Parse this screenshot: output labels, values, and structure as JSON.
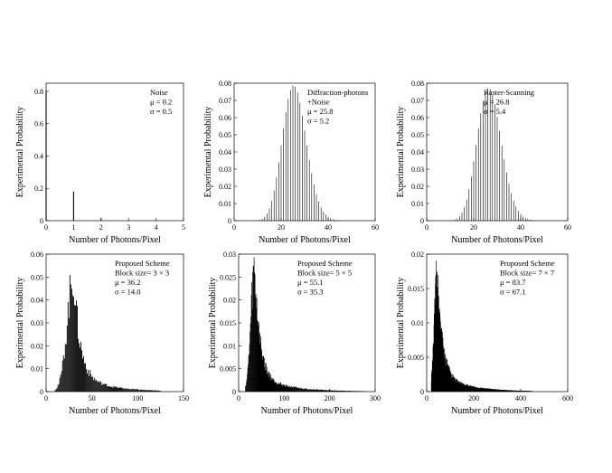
{
  "chart_data": [
    {
      "type": "bar",
      "title": "",
      "xlabel": "Number of Photons/Pixel",
      "ylabel": "Experimental Probability",
      "xlim": [
        0,
        5
      ],
      "ylim": [
        0,
        0.85
      ],
      "xticks": [
        0,
        1,
        2,
        3,
        4,
        5
      ],
      "yticks": [
        0,
        0.2,
        0.4,
        0.6,
        0.8
      ],
      "ytick_labels": [
        "0",
        "0.2",
        "0.4",
        "0.6",
        "0.8"
      ],
      "annotation": [
        "Noise",
        "μ = 0.2",
        "σ = 0.5"
      ],
      "dist": {
        "kind": "discrete",
        "x": [
          0,
          1,
          2,
          3,
          4
        ],
        "y": [
          0.8,
          0.18,
          0.015,
          0.003,
          0.001
        ]
      }
    },
    {
      "type": "bar",
      "title": "",
      "xlabel": "Number of Photons/Pixel",
      "ylabel": "Experimental Probability",
      "xlim": [
        0,
        60
      ],
      "ylim": [
        0,
        0.08
      ],
      "xticks": [
        0,
        20,
        40,
        60
      ],
      "yticks": [
        0,
        0.01,
        0.02,
        0.03,
        0.04,
        0.05,
        0.06,
        0.07,
        0.08
      ],
      "ytick_labels": [
        "0",
        "0.01",
        "0.02",
        "0.03",
        "0.04",
        "0.05",
        "0.06",
        "0.07",
        "0.08"
      ],
      "annotation": [
        "Diffraction-photons",
        "+Noise",
        "μ = 25.8",
        "σ = 5.2"
      ],
      "dist": {
        "kind": "poisson",
        "mean": 25.8,
        "max_x": 50
      }
    },
    {
      "type": "bar",
      "title": "",
      "xlabel": "Number of Photons/Pixel",
      "ylabel": "Experimental Probability",
      "xlim": [
        0,
        60
      ],
      "ylim": [
        0,
        0.08
      ],
      "xticks": [
        0,
        20,
        40,
        60
      ],
      "yticks": [
        0,
        0.01,
        0.02,
        0.03,
        0.04,
        0.05,
        0.06,
        0.07,
        0.08
      ],
      "ytick_labels": [
        "0",
        "0.01",
        "0.02",
        "0.03",
        "0.04",
        "0.05",
        "0.06",
        "0.07",
        "0.08"
      ],
      "annotation": [
        "Raster-Scanning",
        "μ = 26.8",
        "σ = 5.4"
      ],
      "dist": {
        "kind": "poisson",
        "mean": 26.8,
        "max_x": 55
      }
    },
    {
      "type": "bar",
      "title": "",
      "xlabel": "Number of Photons/Pixel",
      "ylabel": "Experimental Probability",
      "xlim": [
        0,
        150
      ],
      "ylim": [
        0,
        0.06
      ],
      "xticks": [
        0,
        50,
        100,
        150
      ],
      "yticks": [
        0,
        0.01,
        0.02,
        0.03,
        0.04,
        0.05,
        0.06
      ],
      "ytick_labels": [
        "0",
        "0.01",
        "0.02",
        "0.03",
        "0.04",
        "0.05",
        "0.06"
      ],
      "annotation": [
        "Proposed Scheme",
        "Block size= 3 × 3",
        "μ = 36.2",
        "σ = 14.0"
      ],
      "dist": {
        "kind": "skewed",
        "peak_x": 30,
        "peak_y": 0.05,
        "start_x": 10,
        "end_x": 125,
        "left_width": 7,
        "fast_tau": 7,
        "tail_weight": 0.16,
        "slow_tau": 32
      }
    },
    {
      "type": "bar",
      "title": "",
      "xlabel": "Number of Photons/Pixel",
      "ylabel": "Experimental Probability",
      "xlim": [
        0,
        300
      ],
      "ylim": [
        0,
        0.03
      ],
      "xticks": [
        0,
        100,
        200,
        300
      ],
      "yticks": [
        0,
        0.005,
        0.01,
        0.015,
        0.02,
        0.025,
        0.03
      ],
      "ytick_labels": [
        "0",
        "0.005",
        "0.01",
        "0.015",
        "0.02",
        "0.025",
        "0.03"
      ],
      "annotation": [
        "Proposed Scheme",
        "Block size= 5 × 5",
        "μ = 55.1",
        "σ = 35.3"
      ],
      "dist": {
        "kind": "skewed",
        "peak_x": 35,
        "peak_y": 0.027,
        "start_x": 15,
        "end_x": 280,
        "left_width": 8,
        "fast_tau": 12,
        "tail_weight": 0.13,
        "slow_tau": 65
      }
    },
    {
      "type": "bar",
      "title": "",
      "xlabel": "Number of Photons/Pixel",
      "ylabel": "Experimental Probability",
      "xlim": [
        0,
        600
      ],
      "ylim": [
        0,
        0.02
      ],
      "xticks": [
        0,
        200,
        400,
        600
      ],
      "yticks": [
        0,
        0.005,
        0.01,
        0.015,
        0.02
      ],
      "ytick_labels": [
        "0",
        "0.005",
        "0.01",
        "0.015",
        "0.02"
      ],
      "annotation": [
        "Proposed Scheme",
        "Block size= 7 × 7",
        "μ = 83.7",
        "σ = 67.1"
      ],
      "dist": {
        "kind": "skewed",
        "peak_x": 45,
        "peak_y": 0.017,
        "start_x": 20,
        "end_x": 450,
        "left_width": 12,
        "fast_tau": 22,
        "tail_weight": 0.14,
        "slow_tau": 120
      }
    }
  ]
}
